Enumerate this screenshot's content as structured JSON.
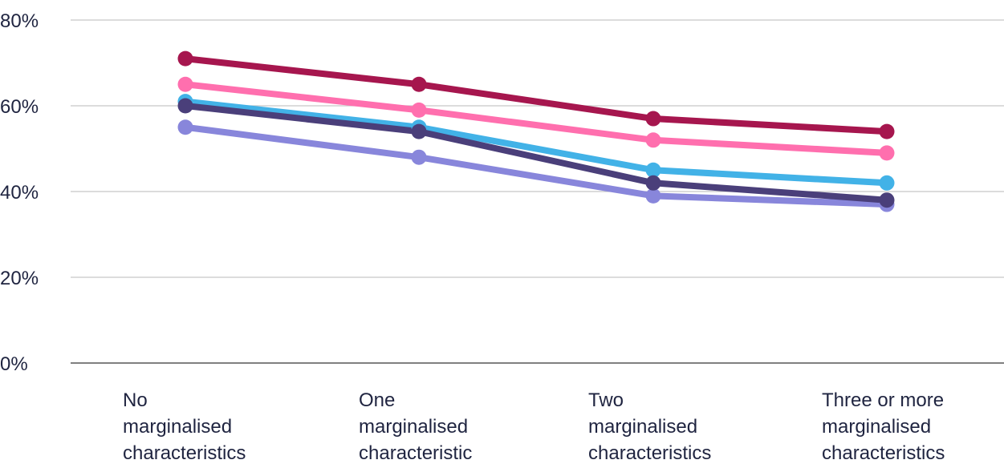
{
  "chart_data": {
    "type": "line",
    "categories": [
      [
        "No",
        "marginalised",
        "characteristics"
      ],
      [
        "One",
        "marginalised",
        "characteristic"
      ],
      [
        "Two",
        "marginalised",
        "characteristics"
      ],
      [
        "Three or more",
        "marginalised",
        "characteristics"
      ]
    ],
    "ylim": [
      0,
      80
    ],
    "yticks": [
      0,
      20,
      40,
      60,
      80
    ],
    "ytick_labels": [
      "0%",
      "20%",
      "40%",
      "60%",
      "80%"
    ],
    "grid": true,
    "series": [
      {
        "color": "#8886db",
        "values": [
          55,
          48,
          39,
          37
        ]
      },
      {
        "color": "#42b2e7",
        "values": [
          61,
          55,
          45,
          42
        ]
      },
      {
        "color": "#4a3f7a",
        "values": [
          60,
          54,
          42,
          38
        ]
      },
      {
        "color": "#ff6fae",
        "values": [
          65,
          59,
          52,
          49
        ]
      },
      {
        "color": "#a6164e",
        "values": [
          71,
          65,
          57,
          54
        ]
      }
    ],
    "colors": {
      "grid": "#c8c8c8",
      "axis": "#555555",
      "text": "#1f2440"
    }
  }
}
